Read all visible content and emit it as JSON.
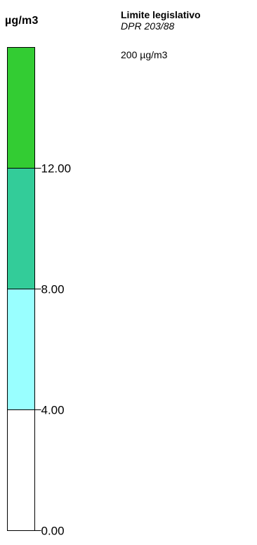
{
  "unit": "µg/m3",
  "info": {
    "title": "Limite legislativo",
    "subtitle": "DPR 203/88",
    "value": "200 µg/m3"
  },
  "scale": {
    "min": 0,
    "max": 16,
    "bands": [
      {
        "from": 12,
        "to": 16,
        "color": "#33cc33"
      },
      {
        "from": 8,
        "to": 12,
        "color": "#33cc99"
      },
      {
        "from": 4,
        "to": 8,
        "color": "#99ffff"
      },
      {
        "from": 0,
        "to": 4,
        "color": "#ffffff"
      }
    ],
    "ticks": [
      {
        "value": 12,
        "label": "12.00"
      },
      {
        "value": 8,
        "label": "8.00"
      },
      {
        "value": 4,
        "label": "4.00"
      },
      {
        "value": 0,
        "label": "0.00"
      }
    ]
  }
}
